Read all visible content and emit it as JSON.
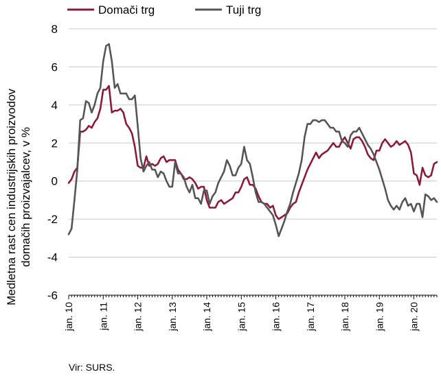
{
  "chart_data": {
    "type": "line",
    "title": "",
    "ylabel": "Medletna rast cen industrijskih proizvodov domačih proizvajalcev, v %",
    "ylabel_lines": [
      "Medletna rast cen industrijskih proizvodov",
      "domačih proizvajalcev, v %"
    ],
    "xlabel": "",
    "ylim": [
      -6,
      8
    ],
    "yticks": [
      "8",
      "6",
      "4",
      "2",
      "0",
      "-2",
      "-4",
      "-6"
    ],
    "xticks": [
      "jan. 10",
      "jan. 11",
      "jan. 12",
      "jan. 13",
      "jan. 14",
      "jan. 15",
      "jan. 16",
      "jan. 17",
      "jan. 18",
      "jan. 19",
      "jan. 20"
    ],
    "x_range": [
      "2010-01",
      "2020-10"
    ],
    "grid": "horizontal",
    "legend_position": "top-left",
    "series": [
      {
        "name": "Domači trg",
        "color": "#8b1a3a",
        "values": [
          -0.1,
          0.1,
          0.5,
          0.7,
          2.6,
          2.6,
          2.7,
          2.9,
          2.8,
          3.1,
          3.3,
          3.8,
          4.8,
          4.8,
          5.0,
          3.6,
          3.7,
          3.7,
          3.8,
          3.6,
          3.0,
          2.8,
          2.5,
          1.8,
          0.8,
          0.7,
          0.7,
          1.3,
          0.8,
          0.9,
          0.8,
          0.9,
          1.2,
          1.3,
          1.0,
          1.1,
          1.1,
          1.1,
          0.6,
          0.4,
          0.1,
          0.1,
          0.2,
          0.1,
          -0.1,
          -0.4,
          -0.3,
          -0.3,
          -1.0,
          -1.4,
          -1.4,
          -1.4,
          -1.1,
          -1.0,
          -1.2,
          -1.1,
          -1.0,
          -0.9,
          -0.6,
          -0.6,
          -0.3,
          0.1,
          0.2,
          -0.2,
          -0.2,
          -0.4,
          -0.8,
          -1.1,
          -1.2,
          -1.2,
          -1.4,
          -1.3,
          -1.8,
          -2.0,
          -1.9,
          -1.8,
          -1.7,
          -1.4,
          -1.2,
          -1.1,
          -0.6,
          -0.2,
          0.2,
          0.6,
          0.9,
          1.2,
          1.5,
          1.2,
          1.4,
          1.5,
          1.6,
          1.8,
          2.0,
          1.8,
          1.8,
          2.1,
          2.3,
          2.0,
          1.7,
          2.2,
          2.3,
          2.3,
          2.1,
          1.8,
          1.4,
          1.2,
          1.1,
          1.6,
          1.6,
          2.0,
          2.2,
          2.0,
          1.8,
          1.9,
          2.1,
          1.9,
          2.0,
          2.1,
          1.9,
          1.5,
          0.4,
          0.3,
          -0.2,
          0.7,
          0.3,
          0.2,
          0.3,
          0.9,
          1.0
        ]
      },
      {
        "name": "Tuji trg",
        "color": "#555555",
        "values": [
          -2.8,
          -2.5,
          -1.0,
          0.6,
          3.2,
          3.3,
          4.2,
          4.1,
          3.6,
          4.0,
          4.6,
          4.9,
          6.3,
          7.1,
          7.2,
          6.3,
          4.9,
          5.1,
          4.6,
          4.6,
          4.6,
          4.3,
          4.3,
          4.5,
          2.9,
          1.2,
          0.5,
          0.8,
          1.0,
          0.6,
          0.6,
          0.2,
          0.5,
          0.4,
          0.0,
          -0.3,
          -0.3,
          1.0,
          0.4,
          0.4,
          0.2,
          -0.3,
          -0.6,
          -0.2,
          -0.9,
          -0.9,
          -1.2,
          -0.5,
          -0.5,
          -1.2,
          -0.8,
          -0.6,
          -0.1,
          0.2,
          0.5,
          1.1,
          0.8,
          0.3,
          0.3,
          0.7,
          0.9,
          1.8,
          1.1,
          0.9,
          0.2,
          -0.6,
          -1.1,
          -1.1,
          -1.2,
          -1.4,
          -1.6,
          -1.8,
          -2.3,
          -2.9,
          -2.5,
          -2.1,
          -1.6,
          -1.2,
          -0.6,
          -0.1,
          0.4,
          1.1,
          2.3,
          3.0,
          3.0,
          3.2,
          3.2,
          3.1,
          3.2,
          3.2,
          3.0,
          2.8,
          2.8,
          2.6,
          2.6,
          2.1,
          2.0,
          1.8,
          2.4,
          2.6,
          2.6,
          2.8,
          2.5,
          2.2,
          1.9,
          1.7,
          1.4,
          1.0,
          0.6,
          0.1,
          -0.4,
          -1.0,
          -1.3,
          -1.5,
          -1.3,
          -1.5,
          -1.1,
          -0.9,
          -1.3,
          -1.2,
          -1.6,
          -1.2,
          -1.2,
          -1.9,
          -0.7,
          -0.8,
          -1.0,
          -0.9,
          -1.1
        ]
      }
    ]
  },
  "source": "Vir: SURS."
}
